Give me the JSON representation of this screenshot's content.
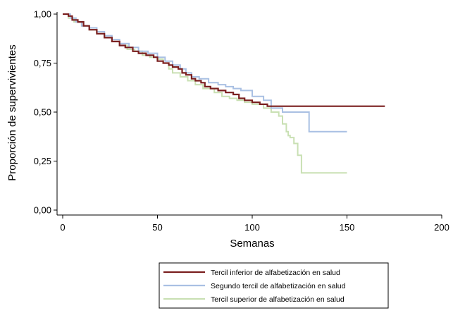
{
  "chart_data": {
    "type": "line",
    "title": "",
    "xlabel": "Semanas",
    "ylabel": "Proporción de supervivientes",
    "xlim": [
      0,
      200
    ],
    "ylim": [
      0,
      1
    ],
    "x_ticks": [
      0,
      50,
      100,
      150,
      200
    ],
    "y_ticks": [
      0,
      0.25,
      0.5,
      0.75,
      1
    ],
    "x_tick_labels": [
      "0",
      "50",
      "100",
      "150",
      "200"
    ],
    "y_tick_labels": [
      "0,00",
      "0,25",
      "0,50",
      "0,75",
      "1,00"
    ],
    "grid": false,
    "legend_position": "bottom",
    "series": [
      {
        "name": "Tercil inferior de alfabetización en salud",
        "color": "#7a1f1f",
        "step": true,
        "x": [
          0,
          3,
          5,
          8,
          11,
          14,
          18,
          22,
          26,
          30,
          33,
          37,
          40,
          44,
          48,
          50,
          53,
          56,
          58,
          61,
          63,
          65,
          68,
          70,
          73,
          75,
          78,
          82,
          86,
          90,
          93,
          96,
          100,
          104,
          108,
          112,
          170
        ],
        "y": [
          1.0,
          0.99,
          0.97,
          0.96,
          0.94,
          0.92,
          0.9,
          0.88,
          0.86,
          0.84,
          0.83,
          0.81,
          0.8,
          0.79,
          0.78,
          0.76,
          0.75,
          0.74,
          0.73,
          0.72,
          0.7,
          0.69,
          0.67,
          0.66,
          0.65,
          0.63,
          0.62,
          0.61,
          0.6,
          0.59,
          0.57,
          0.56,
          0.55,
          0.54,
          0.53,
          0.53,
          0.53
        ]
      },
      {
        "name": "Segundo tercil de alfabetización en salud",
        "color": "#a9c0e3",
        "step": true,
        "x": [
          0,
          4,
          7,
          10,
          14,
          18,
          22,
          26,
          30,
          35,
          40,
          45,
          50,
          54,
          58,
          62,
          65,
          68,
          72,
          77,
          82,
          86,
          90,
          94,
          100,
          106,
          110,
          116,
          122,
          126,
          130,
          150
        ],
        "y": [
          1.0,
          0.98,
          0.96,
          0.94,
          0.93,
          0.91,
          0.89,
          0.87,
          0.85,
          0.83,
          0.81,
          0.8,
          0.78,
          0.76,
          0.74,
          0.72,
          0.7,
          0.68,
          0.67,
          0.65,
          0.64,
          0.63,
          0.62,
          0.61,
          0.58,
          0.56,
          0.52,
          0.5,
          0.5,
          0.5,
          0.4,
          0.4
        ]
      },
      {
        "name": "Tercil superior de alfabetización en salud",
        "color": "#c9e0b3",
        "step": true,
        "x": [
          0,
          3,
          6,
          10,
          14,
          18,
          22,
          26,
          30,
          34,
          38,
          42,
          46,
          50,
          53,
          56,
          58,
          62,
          66,
          70,
          74,
          80,
          84,
          88,
          92,
          96,
          100,
          106,
          110,
          114,
          116,
          118,
          119,
          120,
          122,
          124,
          126,
          128,
          150
        ],
        "y": [
          1.0,
          0.98,
          0.96,
          0.94,
          0.92,
          0.9,
          0.88,
          0.86,
          0.84,
          0.82,
          0.81,
          0.79,
          0.78,
          0.77,
          0.75,
          0.72,
          0.7,
          0.68,
          0.66,
          0.64,
          0.62,
          0.6,
          0.58,
          0.57,
          0.56,
          0.55,
          0.54,
          0.52,
          0.5,
          0.48,
          0.44,
          0.4,
          0.38,
          0.37,
          0.34,
          0.28,
          0.19,
          0.19,
          0.19
        ]
      }
    ]
  }
}
